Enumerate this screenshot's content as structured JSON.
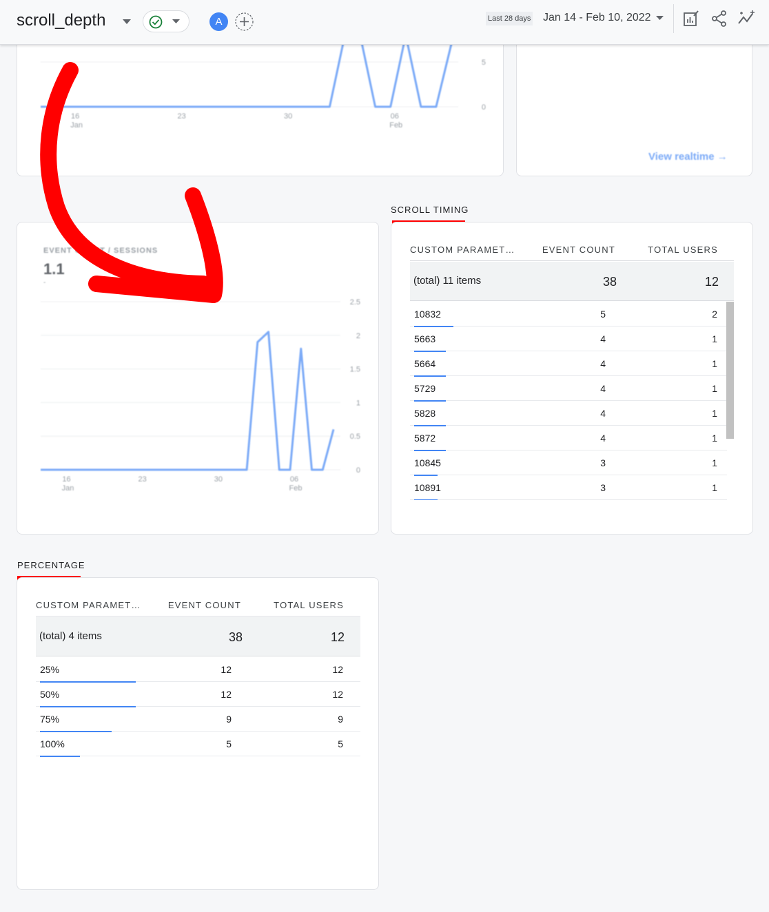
{
  "header": {
    "report_title": "scroll_depth",
    "date_chip": "Last 28 days",
    "date_range": "Jan 14 - Feb 10, 2022",
    "avatar_letter": "A",
    "icons": [
      "chevron-down-icon",
      "check-circle-icon",
      "add-comparison-icon",
      "edit-report-icon",
      "share-icon",
      "insights-icon"
    ]
  },
  "top_chart": {
    "type": "line",
    "y_ticks": [
      "5",
      "0"
    ],
    "x_ticks": [
      {
        "day": "16",
        "month": "Jan"
      },
      {
        "day": "23",
        "month": ""
      },
      {
        "day": "30",
        "month": ""
      },
      {
        "day": "06",
        "month": "Feb"
      }
    ]
  },
  "realtime_card": {
    "link": "View realtime"
  },
  "event_count_card": {
    "metric_label": "EVENT COUNT / SESSIONS",
    "metric_value": "1.1",
    "metric_sub": "-"
  },
  "chart_data": [
    {
      "type": "line",
      "x": [
        "Jan 14",
        "Jan 15",
        "Jan 16",
        "Jan 17",
        "Jan 18",
        "Jan 19",
        "Jan 20",
        "Jan 21",
        "Jan 22",
        "Jan 23",
        "Jan 24",
        "Jan 25",
        "Jan 26",
        "Jan 27",
        "Jan 28",
        "Jan 29",
        "Jan 30",
        "Jan 31",
        "Feb 1",
        "Feb 2",
        "Feb 3",
        "Feb 4",
        "Feb 5",
        "Feb 6",
        "Feb 7",
        "Feb 8",
        "Feb 9",
        "Feb 10"
      ],
      "values": [
        0,
        0,
        0,
        0,
        0,
        0,
        0,
        0,
        0,
        0,
        0,
        0,
        0,
        0,
        0,
        0,
        0,
        0,
        0,
        0,
        8,
        8,
        0,
        0,
        8,
        0,
        0,
        7
      ],
      "ylim": [
        0,
        5
      ],
      "color": "#7baaf7"
    },
    {
      "type": "line",
      "title": "EVENT COUNT / SESSIONS",
      "x": [
        "Jan 14",
        "Jan 15",
        "Jan 16",
        "Jan 17",
        "Jan 18",
        "Jan 19",
        "Jan 20",
        "Jan 21",
        "Jan 22",
        "Jan 23",
        "Jan 24",
        "Jan 25",
        "Jan 26",
        "Jan 27",
        "Jan 28",
        "Jan 29",
        "Jan 30",
        "Jan 31",
        "Feb 1",
        "Feb 2",
        "Feb 3",
        "Feb 4",
        "Feb 5",
        "Feb 6",
        "Feb 7",
        "Feb 8",
        "Feb 9",
        "Feb 10"
      ],
      "values": [
        0,
        0,
        0,
        0,
        0,
        0,
        0,
        0,
        0,
        0,
        0,
        0,
        0,
        0,
        0,
        0,
        0,
        0,
        0,
        0,
        1.9,
        2.05,
        0,
        0,
        1.8,
        0,
        0,
        0.6
      ],
      "ylim": [
        0,
        2.5
      ],
      "y_ticks": [
        "2.5",
        "2",
        "1.5",
        "1",
        "0.5",
        "0"
      ],
      "x_ticks": [
        {
          "day": "16",
          "month": "Jan"
        },
        {
          "day": "23",
          "month": ""
        },
        {
          "day": "30",
          "month": ""
        },
        {
          "day": "06",
          "month": "Feb"
        }
      ],
      "grid": true,
      "color": "#7baaf7"
    }
  ],
  "scroll_timing": {
    "title": "SCROLL TIMING",
    "columns": [
      "CUSTOM PARAMET…",
      "EVENT COUNT",
      "TOTAL USERS"
    ],
    "total": {
      "label": "(total) 11 items",
      "event_count": "38",
      "total_users": "12"
    },
    "rows": [
      {
        "param": "10832",
        "event_count": "5",
        "total_users": "2",
        "share": 1.0
      },
      {
        "param": "5663",
        "event_count": "4",
        "total_users": "1",
        "share": 0.8
      },
      {
        "param": "5664",
        "event_count": "4",
        "total_users": "1",
        "share": 0.8
      },
      {
        "param": "5729",
        "event_count": "4",
        "total_users": "1",
        "share": 0.8
      },
      {
        "param": "5828",
        "event_count": "4",
        "total_users": "1",
        "share": 0.8
      },
      {
        "param": "5872",
        "event_count": "4",
        "total_users": "1",
        "share": 0.8
      },
      {
        "param": "10845",
        "event_count": "3",
        "total_users": "1",
        "share": 0.6
      },
      {
        "param": "10891",
        "event_count": "3",
        "total_users": "1",
        "share": 0.6
      }
    ]
  },
  "percentage": {
    "title": "PERCENTAGE",
    "columns": [
      "CUSTOM PARAMET…",
      "EVENT COUNT",
      "TOTAL USERS"
    ],
    "total": {
      "label": "(total) 4 items",
      "event_count": "38",
      "total_users": "12"
    },
    "rows": [
      {
        "param": "25%",
        "event_count": "12",
        "total_users": "12",
        "share": 1.0
      },
      {
        "param": "50%",
        "event_count": "12",
        "total_users": "12",
        "share": 1.0
      },
      {
        "param": "75%",
        "event_count": "9",
        "total_users": "9",
        "share": 0.75
      },
      {
        "param": "100%",
        "event_count": "5",
        "total_users": "5",
        "share": 0.4167
      }
    ]
  },
  "colors": {
    "accent": "#4285f4",
    "annotation": "#ff0000",
    "avatar": "#4285f4",
    "check": "#188038"
  }
}
